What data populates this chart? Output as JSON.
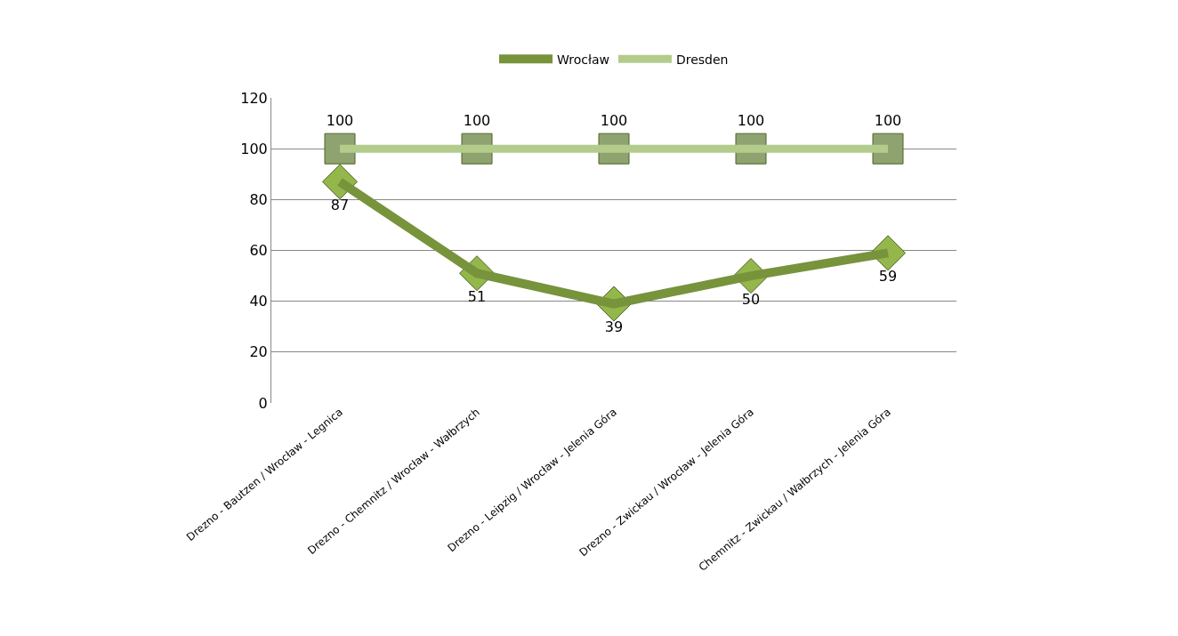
{
  "chart_data": {
    "type": "line",
    "categories": [
      "Drezno - Bautzen / Wrocław - Legnica",
      "Drezno - Chemnitz / Wrocław - Wałbrzych",
      "Drezno - Leipzig / Wrocław - Jelenia Góra",
      "Drezno - Zwickau / Wrocław - Jelenia Góra",
      "Chemnitz - Zwickau / Wałbrzych - Jelenia Góra"
    ],
    "series": [
      {
        "name": "Wrocław",
        "color": "#77933c",
        "marker": "diamond",
        "values": [
          87,
          51,
          39,
          50,
          59
        ]
      },
      {
        "name": "Dresden",
        "color": "#b3cc8c",
        "marker": "square",
        "values": [
          100,
          100,
          100,
          100,
          100
        ]
      }
    ],
    "ylim": [
      0,
      120
    ],
    "yticks": [
      0,
      20,
      40,
      60,
      80,
      100,
      120
    ],
    "grid": "y",
    "legend": "top",
    "data_labels": true
  }
}
